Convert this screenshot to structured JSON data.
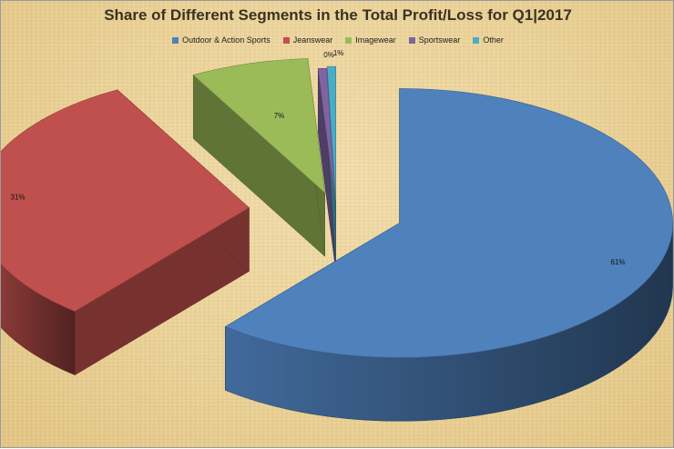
{
  "chart_data": {
    "type": "pie",
    "title": "Share of Different Segments in the Total Profit/Loss for Q1|2017",
    "legend_position": "top",
    "slices": [
      {
        "name": "Outdoor & Action Sports",
        "value": 61,
        "label": "61%",
        "color": "#4f81bd"
      },
      {
        "name": "Jeanswear",
        "value": 31,
        "label": "31%",
        "color": "#c0504d"
      },
      {
        "name": "Imagewear",
        "value": 7,
        "label": "7%",
        "color": "#9bbb59"
      },
      {
        "name": "Sportswear",
        "value": 0.5,
        "label": "0%",
        "color": "#8064a2"
      },
      {
        "name": "Other",
        "value": 0.5,
        "label": "1%",
        "color": "#4bacc6"
      }
    ]
  }
}
